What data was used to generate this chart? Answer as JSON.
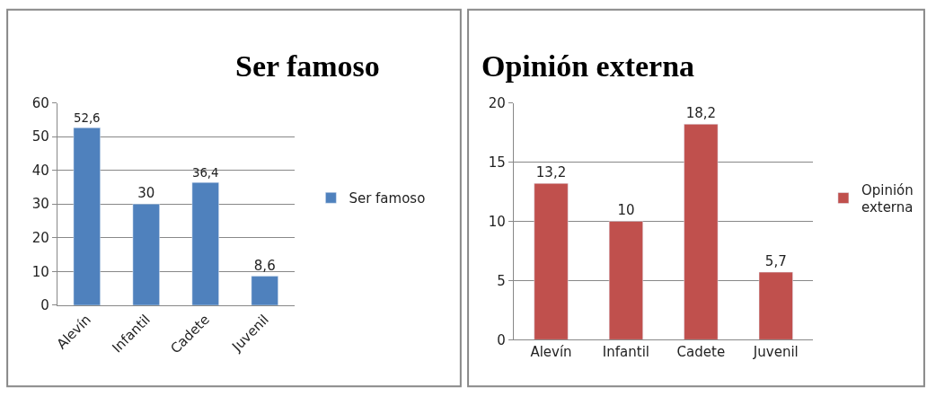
{
  "chart_data": [
    {
      "type": "bar",
      "title": "Ser famoso",
      "categories": [
        "Alevín",
        "Infantil",
        "Cadete",
        "Juvenil"
      ],
      "series": [
        {
          "name": "Ser famoso",
          "color": "#4f81bd",
          "values": [
            52.6,
            30,
            36.4,
            8.6
          ],
          "value_labels": [
            "52,6",
            "30",
            "36,4",
            "8,6"
          ]
        }
      ],
      "ylim": [
        0,
        60
      ],
      "yticks": [
        0,
        10,
        20,
        30,
        40,
        50,
        60
      ],
      "grid": "y",
      "legend": "right"
    },
    {
      "type": "bar",
      "title": "Opinión externa",
      "categories": [
        "Alevín",
        "Infantil",
        "Cadete",
        "Juvenil"
      ],
      "series": [
        {
          "name": "Opinión externa",
          "color": "#c0504d",
          "values": [
            13.2,
            10,
            18.2,
            5.7
          ],
          "value_labels": [
            "13,2",
            "10",
            "18,2",
            "5,7"
          ]
        }
      ],
      "ylim": [
        0,
        20
      ],
      "yticks": [
        0,
        5,
        10,
        15,
        20
      ],
      "grid": "y",
      "legend": "right"
    }
  ]
}
